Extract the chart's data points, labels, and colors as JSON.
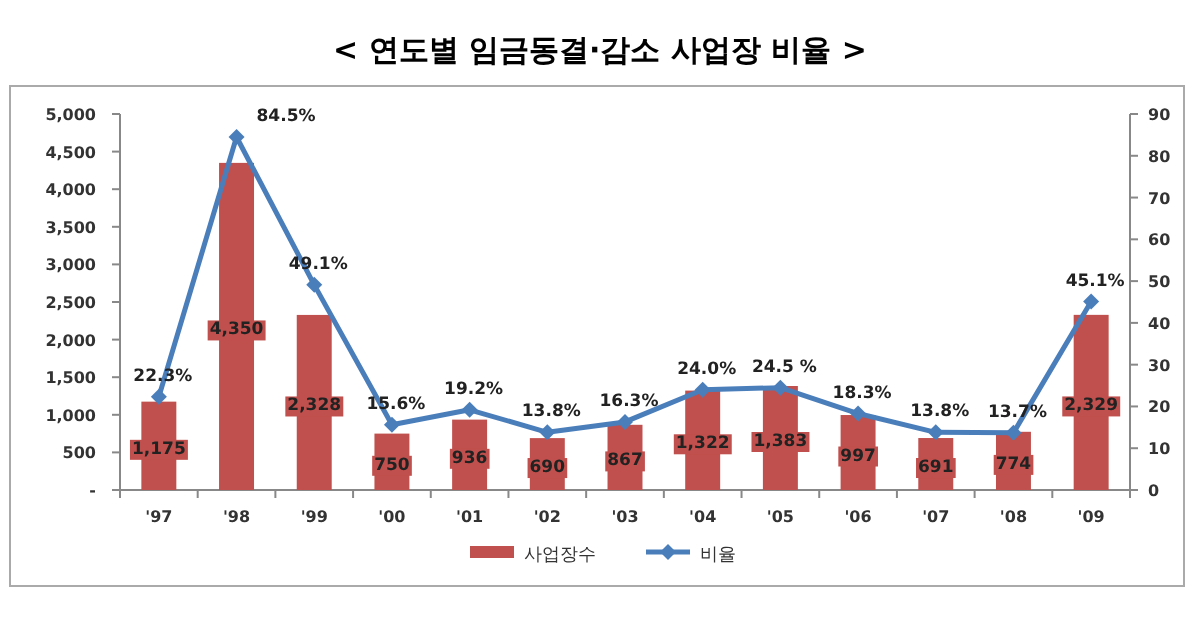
{
  "chart_data": {
    "type": "bar",
    "title": "< 연도별 임금동결·감소 사업장 비율 >",
    "categories": [
      "'97",
      "'98",
      "'99",
      "'00",
      "'01",
      "'02",
      "'03",
      "'04",
      "'05",
      "'06",
      "'07",
      "'08",
      "'09"
    ],
    "series": [
      {
        "name": "사업장수",
        "color": "#c0504d",
        "values": [
          1175,
          4350,
          2328,
          750,
          936,
          690,
          867,
          1322,
          1383,
          997,
          691,
          774,
          2329
        ],
        "value_labels": [
          "1,175",
          "4,350",
          "2,328",
          "750",
          "936",
          "690",
          "867",
          "1,322",
          "1,383",
          "997",
          "691",
          "774",
          "2,329"
        ]
      },
      {
        "name": "비율",
        "type": "line",
        "axis": "y2",
        "color": "#4a7ebb",
        "marker": "diamond",
        "values": [
          22.3,
          84.5,
          49.1,
          15.6,
          19.2,
          13.8,
          16.3,
          24.0,
          24.5,
          18.3,
          13.8,
          13.7,
          45.1
        ],
        "value_labels": [
          "22.3%",
          "84.5%",
          "49.1%",
          "15.6%",
          "19.2%",
          "13.8%",
          "16.3%",
          "24.0%",
          "24.5 %",
          "18.3%",
          "13.8%",
          "13.7%",
          "45.1%"
        ]
      }
    ],
    "ylim": [
      0,
      5000
    ],
    "yticks": [
      {
        "value": 0,
        "label": "-"
      },
      500,
      {
        "value": 1000,
        "label": "1,000"
      },
      {
        "value": 1500,
        "label": "1,500"
      },
      {
        "value": 2000,
        "label": "2,000"
      },
      {
        "value": 2500,
        "label": "2,500"
      },
      {
        "value": 3000,
        "label": "3,000"
      },
      {
        "value": 3500,
        "label": "3,500"
      },
      {
        "value": 4000,
        "label": "4,000"
      },
      {
        "value": 4500,
        "label": "4,500"
      },
      {
        "value": 5000,
        "label": "5,000"
      }
    ],
    "y2lim": [
      0,
      90
    ],
    "y2ticks": [
      0,
      10,
      20,
      30,
      40,
      50,
      60,
      70,
      80,
      90
    ],
    "grid": false,
    "legend": "bottom"
  }
}
